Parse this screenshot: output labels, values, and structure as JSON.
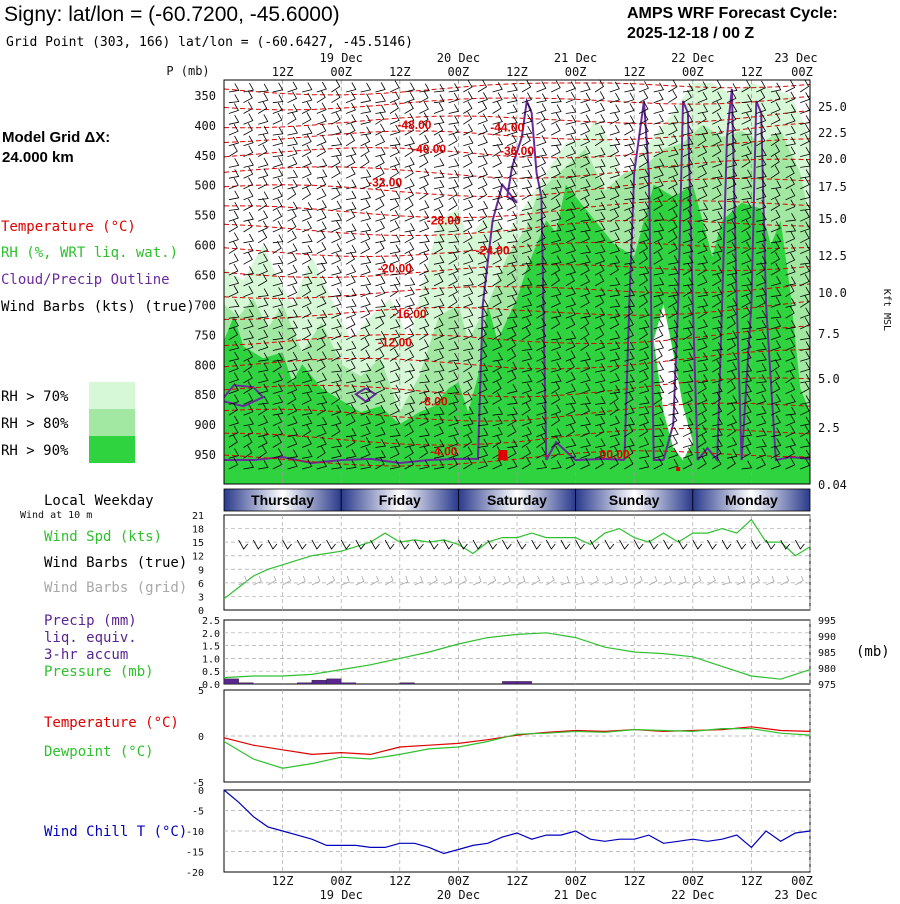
{
  "header": {
    "title": "Signy:  lat/lon = (-60.7200, -45.6000)",
    "subtitle": "Grid Point (303, 166) lat/lon = (-60.6427, -45.5146)",
    "cycle_label": "AMPS WRF Forecast Cycle:",
    "cycle_value": "2025-12-18 / 00  Z"
  },
  "model_grid": {
    "label": "Model Grid ΔX:",
    "value": " 24.000 km"
  },
  "time_axis": {
    "hour_labels": [
      "12Z",
      "00Z",
      "12Z",
      "00Z",
      "12Z",
      "00Z",
      "12Z",
      "00Z",
      "12Z",
      "00Z"
    ],
    "date_labels": [
      "19 Dec",
      "20 Dec",
      "21 Dec",
      "22 Dec",
      "23 Dec"
    ],
    "hours_total": 120
  },
  "colors": {
    "temperature": "#e00000",
    "rh": "#2ec02e",
    "cloud_outline": "#6a2a9c",
    "wind_speed": "#2ec02e",
    "grid_barbs": "#a8a8a8",
    "precip": "#5a2590",
    "pressure": "#2ec02e",
    "dewpoint": "#2ec02e",
    "wind_chill": "#0000c0",
    "rh70": "#d6f8d6",
    "rh80": "#a2e8a2",
    "rh90": "#2fd23f"
  },
  "cross_section": {
    "pressure_label": "P (mb)",
    "pressure_ticks": [
      "350",
      "400",
      "450",
      "500",
      "550",
      "600",
      "650",
      "700",
      "750",
      "800",
      "850",
      "900",
      "950"
    ],
    "height_ticks": [
      "25.0",
      "22.5",
      "20.0",
      "17.5",
      "15.0",
      "12.5",
      "10.0",
      "7.5",
      "5.0",
      "2.5",
      "0.04"
    ],
    "height_axis_label": "Kft MSL",
    "legend": {
      "temperature": "Temperature (°C)",
      "rh": "RH (%, WRT liq. wat.)",
      "cloud": "Cloud/Precip Outline",
      "wind_barbs": "Wind Barbs (kts) (true)",
      "rh70": "RH > 70%",
      "rh80": "RH > 80%",
      "rh90": "RH > 90%"
    },
    "temperature_labels": [
      {
        "text": "-48.00",
        "hour": 39,
        "p": 400
      },
      {
        "text": "-44.00",
        "hour": 58,
        "p": 404
      },
      {
        "text": "-40.00",
        "hour": 42,
        "p": 440
      },
      {
        "text": "-36.00",
        "hour": 60,
        "p": 444
      },
      {
        "text": "-32.00",
        "hour": 33,
        "p": 496
      },
      {
        "text": "-28.00",
        "hour": 45,
        "p": 560
      },
      {
        "text": "-24.00",
        "hour": 55,
        "p": 610
      },
      {
        "text": "-20.00",
        "hour": 35,
        "p": 640
      },
      {
        "text": "-16.00",
        "hour": 38,
        "p": 716
      },
      {
        "text": "-12.00",
        "hour": 35,
        "p": 764
      },
      {
        "text": "-8.00",
        "hour": 43,
        "p": 862
      },
      {
        "text": "-4.00",
        "hour": 45,
        "p": 946
      },
      {
        "text": "00.00",
        "hour": 80,
        "p": 951
      }
    ]
  },
  "weekday_bar": {
    "title": "Local Weekday",
    "days": [
      "Thursday",
      "Friday",
      "Saturday",
      "Sunday",
      "Monday"
    ]
  },
  "wind_panel": {
    "subtitle": "Wind at 10 m",
    "labels": {
      "speed": "Wind Spd (kts)",
      "barbs_true": "Wind Barbs (true)",
      "barbs_grid": "Wind Barbs (grid)"
    },
    "yticks": [
      "21",
      "18",
      "15",
      "12",
      "9",
      "6",
      "3",
      "0"
    ]
  },
  "precip_panel": {
    "labels": {
      "precip": "Precip (mm)",
      "liq": "liq. equiv.",
      "accum": "3-hr accum",
      "pressure": "Pressure (mb)"
    },
    "precip_ticks": [
      "2.5",
      "2.0",
      "1.5",
      "1.0",
      "0.5",
      "0.0"
    ],
    "pressure_ticks": [
      "995",
      "990",
      "985",
      "980",
      "975"
    ],
    "pressure_unit": "(mb)"
  },
  "temp_panel": {
    "labels": {
      "temperature": "Temperature (°C)",
      "dewpoint": "Dewpoint (°C)"
    },
    "yticks": [
      "5",
      "0",
      "-5"
    ]
  },
  "chill_panel": {
    "labels": {
      "chill": "Wind Chill T (°C)"
    },
    "yticks": [
      "0",
      "-5",
      "-10",
      "-15",
      "-20"
    ]
  },
  "chart_data": [
    {
      "type": "line",
      "title": "Wind Spd (kts)",
      "ylim": [
        0,
        21
      ],
      "x": [
        0,
        3,
        6,
        9,
        12,
        15,
        18,
        21,
        24,
        27,
        30,
        33,
        36,
        39,
        42,
        45,
        48,
        51,
        54,
        57,
        60,
        63,
        66,
        69,
        72,
        75,
        78,
        81,
        84,
        87,
        90,
        93,
        96,
        99,
        102,
        105,
        108,
        111,
        114,
        117,
        120
      ],
      "series": [
        {
          "name": "Wind Spd (kts)",
          "values": [
            2.5,
            5,
            7.5,
            9,
            10,
            11,
            12,
            12.5,
            13,
            14,
            15,
            17,
            15,
            15.5,
            15,
            15.5,
            14.5,
            12.5,
            15,
            16,
            16,
            17,
            16,
            16,
            16,
            14.5,
            17,
            18,
            16,
            15,
            17,
            15,
            17,
            17,
            18,
            17,
            20,
            15,
            15,
            12,
            14
          ]
        }
      ]
    },
    {
      "type": "bar",
      "title": "Precip (mm) 3-hr accum",
      "ylim": [
        0,
        2.5
      ],
      "x": [
        0,
        3,
        6,
        9,
        12,
        15,
        18,
        21,
        24,
        27,
        30,
        33,
        36,
        39,
        42,
        45,
        48,
        51,
        54,
        57,
        60,
        63,
        66,
        69,
        72,
        75,
        78,
        81,
        84,
        87,
        90,
        93,
        96,
        99,
        102,
        105,
        108,
        111,
        114,
        117
      ],
      "values": [
        0.2,
        0.05,
        0.0,
        0.0,
        0.0,
        0.05,
        0.15,
        0.2,
        0.05,
        0.0,
        0.0,
        0.0,
        0.05,
        0.0,
        0.0,
        0.0,
        0.0,
        0.0,
        0.0,
        0.1,
        0.1,
        0.0,
        0.0,
        0.0,
        0.0,
        0.0,
        0.0,
        0.0,
        0.0,
        0.0,
        0.0,
        0.0,
        0.0,
        0.0,
        0.0,
        0.0,
        0.0,
        0.0,
        0.0,
        0.0
      ]
    },
    {
      "type": "line",
      "title": "Pressure (mb)",
      "ylim": [
        975,
        995
      ],
      "x": [
        0,
        6,
        12,
        18,
        24,
        30,
        36,
        42,
        48,
        54,
        60,
        66,
        72,
        78,
        84,
        90,
        96,
        102,
        108,
        114,
        120
      ],
      "series": [
        {
          "name": "Pressure (mb)",
          "values": [
            977,
            977.5,
            977.5,
            978,
            979.5,
            981,
            983,
            985,
            987.5,
            989.5,
            990.5,
            991,
            989.5,
            986.5,
            985,
            984.5,
            983.5,
            980.5,
            977.5,
            976.5,
            979.5
          ]
        }
      ]
    },
    {
      "type": "line",
      "title": "Temperature / Dewpoint (°C)",
      "ylim": [
        -5,
        5
      ],
      "x": [
        0,
        6,
        12,
        18,
        24,
        30,
        36,
        42,
        48,
        54,
        60,
        66,
        72,
        78,
        84,
        90,
        96,
        102,
        108,
        114,
        120
      ],
      "series": [
        {
          "name": "Temperature (°C)",
          "values": [
            -0.2,
            -1,
            -1.5,
            -2,
            -1.8,
            -2,
            -1.2,
            -1,
            -0.8,
            -0.4,
            0.1,
            0.4,
            0.6,
            0.5,
            0.7,
            0.5,
            0.6,
            0.7,
            1.0,
            0.6,
            0.5
          ]
        },
        {
          "name": "Dewpoint (°C)",
          "values": [
            -0.6,
            -2.5,
            -3.5,
            -3,
            -2.3,
            -2.5,
            -2,
            -1.4,
            -1.2,
            -0.6,
            0.2,
            0.3,
            0.5,
            0.4,
            0.7,
            0.6,
            0.5,
            0.8,
            0.8,
            0.3,
            0.1
          ]
        }
      ]
    },
    {
      "type": "line",
      "title": "Wind Chill T (°C)",
      "ylim": [
        -20,
        0
      ],
      "x": [
        0,
        3,
        6,
        9,
        12,
        15,
        18,
        21,
        24,
        27,
        30,
        33,
        36,
        39,
        42,
        45,
        48,
        51,
        54,
        57,
        60,
        63,
        66,
        69,
        72,
        75,
        78,
        81,
        84,
        87,
        90,
        93,
        96,
        99,
        102,
        105,
        108,
        111,
        114,
        117,
        120
      ],
      "series": [
        {
          "name": "Wind Chill T (°C)",
          "values": [
            0,
            -3,
            -6.5,
            -9,
            -10,
            -11,
            -12,
            -13.5,
            -13.5,
            -13.5,
            -14,
            -14,
            -13,
            -13,
            -14,
            -15.5,
            -14.5,
            -13.5,
            -13,
            -11.5,
            -10.5,
            -12,
            -11,
            -11,
            -10,
            -12,
            -12.5,
            -12,
            -12,
            -11,
            -13,
            -12.5,
            -12,
            -12.5,
            -12,
            -11,
            -14,
            -10,
            -12.5,
            -10.5,
            -10
          ]
        }
      ]
    }
  ]
}
